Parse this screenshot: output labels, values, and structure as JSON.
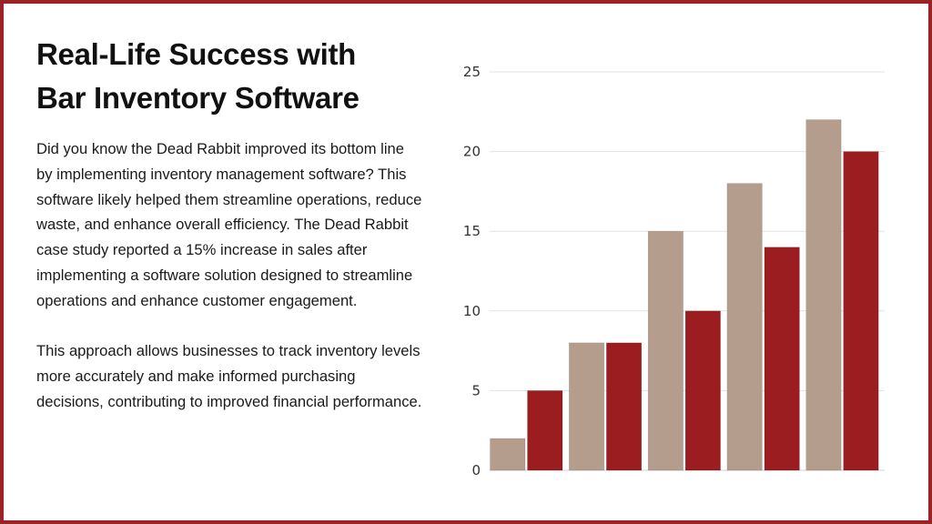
{
  "slide": {
    "title_line1": "Real-Life Success with",
    "title_line2": "Bar Inventory Software",
    "paragraph1": "Did you know the Dead Rabbit improved its bottom line by implementing inventory management software? This software likely helped them streamline operations, reduce waste, and enhance overall efficiency. The Dead Rabbit case study reported a 15% increase in sales after implementing a software solution designed to streamline operations and enhance customer engagement.",
    "paragraph2": "This approach allows businesses to track inventory levels more accurately and make informed purchasing decisions, contributing to improved financial performance.",
    "border_color": "#9b2226"
  },
  "chart_data": {
    "type": "bar",
    "categories": [
      "",
      "",
      "",
      "",
      ""
    ],
    "series": [
      {
        "values": [
          2,
          8,
          15,
          18,
          22
        ],
        "color": "#b59d8d"
      },
      {
        "values": [
          5,
          8,
          10,
          14,
          20
        ],
        "color": "#9b1d20"
      }
    ],
    "yticks": [
      "0",
      "5",
      "10",
      "15",
      "20",
      "25"
    ],
    "ylim": [
      0,
      25
    ],
    "grid": true,
    "legend": "none",
    "title": "",
    "xlabel": "",
    "ylabel": ""
  }
}
